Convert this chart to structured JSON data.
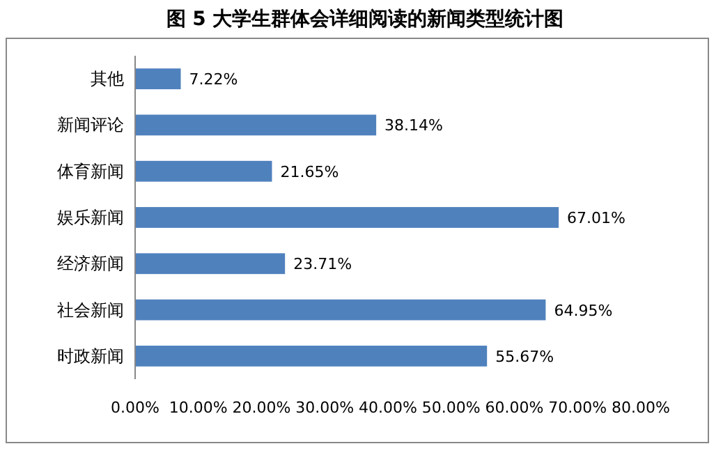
{
  "chart_data": {
    "type": "bar",
    "orientation": "horizontal",
    "title": "图 5  大学生群体会详细阅读的新闻类型统计图",
    "categories": [
      "其他",
      "新闻评论",
      "体育新闻",
      "娱乐新闻",
      "经济新闻",
      "社会新闻",
      "时政新闻"
    ],
    "values": [
      7.22,
      38.14,
      21.65,
      67.01,
      23.71,
      64.95,
      55.67
    ],
    "value_labels": [
      "7.22%",
      "38.14%",
      "21.65%",
      "67.01%",
      "23.71%",
      "64.95%",
      "55.67%"
    ],
    "color": "#4f81bd",
    "xlim": [
      0,
      80
    ],
    "xticks": [
      {
        "value": 0,
        "label": "0.00%"
      },
      {
        "value": 10,
        "label": "10.00%"
      },
      {
        "value": 20,
        "label": "20.00%"
      },
      {
        "value": 30,
        "label": "30.00%"
      },
      {
        "value": 40,
        "label": "40.00%"
      },
      {
        "value": 50,
        "label": "50.00%"
      },
      {
        "value": 60,
        "label": "60.00%"
      },
      {
        "value": 70,
        "label": "70.00%"
      },
      {
        "value": 80,
        "label": "80.00%"
      }
    ]
  }
}
